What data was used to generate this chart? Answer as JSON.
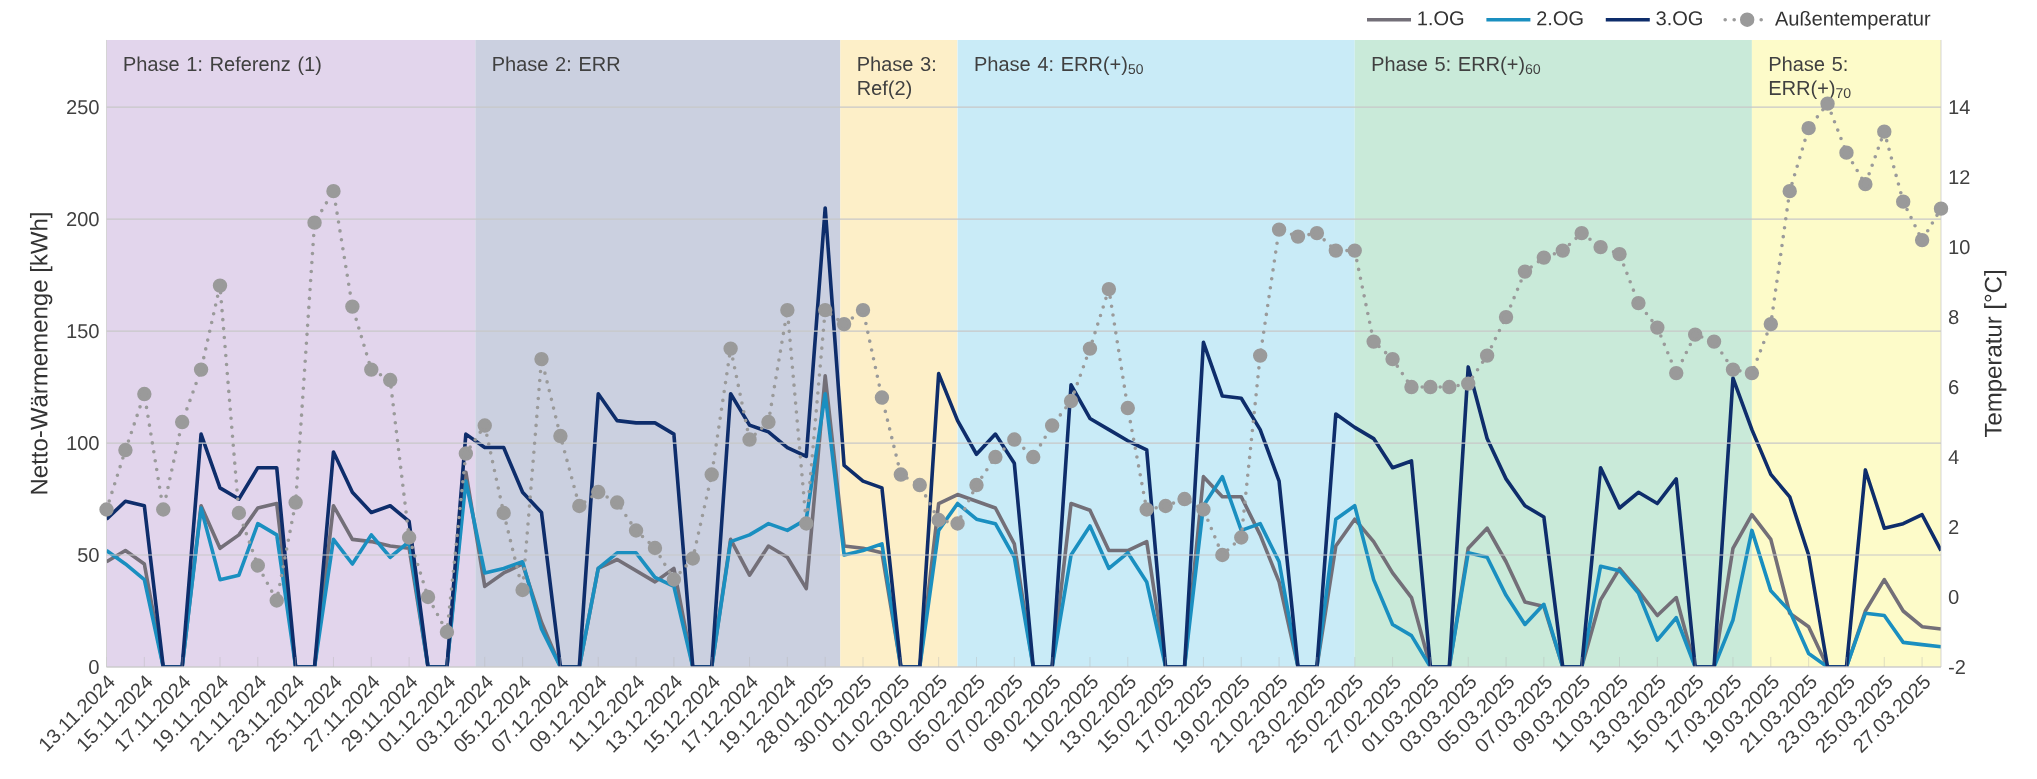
{
  "chart_data": {
    "type": "line",
    "categories": [
      "13.11.2024",
      null,
      "15.11.2024",
      null,
      "17.11.2024",
      null,
      "19.11.2024",
      null,
      "21.11.2024",
      null,
      "23.11.2024",
      null,
      "25.11.2024",
      null,
      "27.11.2024",
      null,
      "29.11.2024",
      null,
      "01.12.2024",
      null,
      "03.12.2024",
      null,
      "05.12.2024",
      null,
      "07.12.2024",
      null,
      "09.12.2024",
      null,
      "11.12.2024",
      null,
      "13.12.2024",
      null,
      "15.12.2024",
      null,
      "17.12.2024",
      null,
      "19.12.2024",
      null,
      "28.01.2025",
      null,
      "30.01.2025",
      null,
      "01.02.2025",
      null,
      "03.02.2025",
      null,
      "05.02.2025",
      null,
      "07.02.2025",
      null,
      "09.02.2025",
      null,
      "11.02.2025",
      null,
      "13.02.2025",
      null,
      "15.02.2025",
      null,
      "17.02.2025",
      null,
      "19.02.2025",
      null,
      "21.02.2025",
      null,
      "23.02.2025",
      null,
      "25.02.2025",
      null,
      "27.02.2025",
      null,
      "01.03.2025",
      null,
      "03.03.2025",
      null,
      "05.03.2025",
      null,
      "07.03.2025",
      null,
      "09.03.2025",
      null,
      "11.03.2025",
      null,
      "13.03.2025",
      null,
      "15.03.2025",
      null,
      "17.03.2025",
      null,
      "19.03.2025",
      null,
      "21.03.2025",
      null,
      "23.03.2025",
      null,
      "25.03.2025",
      null,
      "27.03.2025",
      null
    ],
    "ylabel": "Netto-Wärmemenge [kWh]",
    "y2label": "Temperatur [°C]",
    "ylim": [
      0,
      280
    ],
    "yticks": [
      0,
      50,
      100,
      150,
      200,
      250
    ],
    "y2lim": [
      -2,
      15.92
    ],
    "y2ticks": [
      -2,
      0,
      2,
      4,
      6,
      8,
      10,
      12,
      14
    ],
    "grid": "y",
    "legend": "top right",
    "annotations": [
      "Phase 1: Referenz (1)",
      "Phase 2: ERR",
      "Phase 3: Ref(2)",
      "Phase 4: ERR(+)$_{50}$",
      "Phase 5: ERR(+)$_{60}$",
      "Phase 5: ERR(+)$_{70}$"
    ],
    "series": [
      {
        "name": "1.OG",
        "color": "#736f78",
        "line_style": "solid",
        "marker": "none",
        "values": [
          47,
          52,
          46,
          0,
          0,
          72,
          53,
          59,
          71,
          73,
          0,
          0,
          72,
          57,
          56,
          54,
          53,
          0,
          0,
          87,
          36,
          42,
          46,
          20,
          0,
          0,
          44,
          48,
          43,
          38,
          44,
          0,
          0,
          57,
          41,
          54,
          49,
          35,
          130,
          54,
          53,
          51,
          0,
          0,
          73,
          77,
          74,
          71,
          55,
          0,
          0,
          73,
          70,
          52,
          52,
          56,
          0,
          0,
          85,
          76,
          76,
          59,
          38,
          0,
          0,
          54,
          66,
          56,
          42,
          31,
          0,
          0,
          53,
          62,
          47,
          29,
          27,
          0,
          0,
          30,
          44,
          34,
          23,
          31,
          0,
          0,
          53,
          68,
          57,
          24,
          18,
          0,
          0,
          25,
          39,
          25,
          18,
          17
        ]
      },
      {
        "name": "2.OG",
        "color": "#1a8fc0",
        "line_style": "solid",
        "marker": "none",
        "values": [
          52,
          46,
          39,
          0,
          0,
          71,
          39,
          41,
          64,
          59,
          0,
          0,
          57,
          46,
          59,
          49,
          56,
          0,
          0,
          83,
          42,
          44,
          47,
          17,
          0,
          0,
          44,
          51,
          51,
          40,
          36,
          0,
          0,
          56,
          59,
          64,
          61,
          66,
          122,
          50,
          52,
          55,
          0,
          0,
          61,
          73,
          66,
          64,
          49,
          0,
          0,
          50,
          63,
          44,
          51,
          38,
          0,
          0,
          72,
          85,
          61,
          64,
          47,
          0,
          0,
          66,
          72,
          39,
          19,
          14,
          0,
          0,
          51,
          49,
          32,
          19,
          28,
          0,
          0,
          45,
          43,
          33,
          12,
          22,
          0,
          0,
          21,
          61,
          34,
          25,
          6,
          0,
          0,
          24,
          23,
          11,
          10,
          9
        ]
      },
      {
        "name": "3.OG",
        "color": "#0e2d6b",
        "line_style": "solid",
        "marker": "none",
        "values": [
          66,
          74,
          72,
          0,
          0,
          104,
          80,
          75,
          89,
          89,
          0,
          0,
          96,
          78,
          69,
          72,
          65,
          0,
          0,
          104,
          98,
          98,
          78,
          69,
          0,
          0,
          122,
          110,
          109,
          109,
          104,
          0,
          0,
          122,
          108,
          105,
          98,
          94,
          205,
          90,
          83,
          80,
          0,
          0,
          131,
          110,
          95,
          104,
          91,
          0,
          0,
          126,
          111,
          106,
          101,
          97,
          0,
          0,
          145,
          121,
          120,
          106,
          83,
          0,
          0,
          113,
          107,
          102,
          89,
          92,
          0,
          0,
          134,
          102,
          84,
          72,
          67,
          0,
          0,
          89,
          71,
          78,
          73,
          84,
          0,
          0,
          129,
          106,
          86,
          76,
          50,
          0,
          0,
          88,
          62,
          64,
          68,
          52
        ]
      },
      {
        "name": "Außentemperatur",
        "color": "#9a9a9a",
        "axis": "y2",
        "line_style": "dotted",
        "marker": "circle",
        "values": [
          2.5,
          4.2,
          5.8,
          2.5,
          5.0,
          6.5,
          8.9,
          2.4,
          0.9,
          -0.1,
          2.7,
          10.7,
          11.6,
          8.3,
          6.5,
          6.2,
          1.7,
          0.0,
          -1.0,
          4.1,
          4.9,
          2.4,
          0.2,
          6.8,
          4.6,
          2.6,
          3.0,
          2.7,
          1.9,
          1.4,
          0.5,
          1.1,
          3.5,
          7.1,
          4.5,
          5.0,
          8.2,
          2.1,
          8.2,
          7.8,
          8.2,
          5.7,
          3.5,
          3.2,
          2.2,
          2.1,
          3.2,
          4.0,
          4.5,
          4.0,
          4.9,
          5.6,
          7.1,
          8.8,
          5.4,
          2.5,
          2.6,
          2.8,
          2.5,
          1.2,
          1.7,
          6.9,
          10.5,
          10.3,
          10.4,
          9.9,
          9.9,
          7.3,
          6.8,
          6.0,
          6.0,
          6.0,
          6.1,
          6.9,
          8.0,
          9.3,
          9.7,
          9.9,
          10.4,
          10.0,
          9.8,
          8.4,
          7.7,
          6.4,
          7.5,
          7.3,
          6.5,
          6.4,
          7.8,
          11.6,
          13.4,
          14.1,
          12.7,
          11.8,
          13.3,
          11.3,
          10.2,
          11.1
        ]
      }
    ]
  }
}
